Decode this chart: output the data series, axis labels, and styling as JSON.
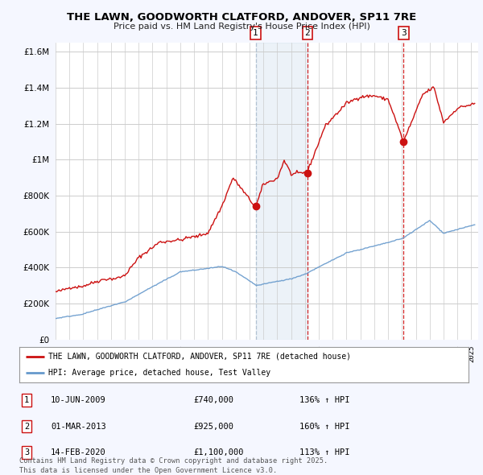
{
  "title": "THE LAWN, GOODWORTH CLATFORD, ANDOVER, SP11 7RE",
  "subtitle": "Price paid vs. HM Land Registry's House Price Index (HPI)",
  "background_color": "#f5f7ff",
  "plot_bg_color": "#ffffff",
  "grid_color": "#cccccc",
  "legend_entries": [
    "THE LAWN, GOODWORTH CLATFORD, ANDOVER, SP11 7RE (detached house)",
    "HPI: Average price, detached house, Test Valley"
  ],
  "legend_colors": [
    "#cc0000",
    "#6699cc"
  ],
  "sale_points": [
    {
      "label": "1",
      "date": "10-JUN-2009",
      "price": 740000,
      "pct": "136%",
      "year": 2009.44,
      "vline_style": "--",
      "vline_color": "#aabbcc"
    },
    {
      "label": "2",
      "date": "01-MAR-2013",
      "price": 925000,
      "pct": "160%",
      "year": 2013.17,
      "vline_style": "--",
      "vline_color": "#cc0000"
    },
    {
      "label": "3",
      "date": "14-FEB-2020",
      "price": 1100000,
      "pct": "113%",
      "year": 2020.12,
      "vline_style": "--",
      "vline_color": "#cc0000"
    }
  ],
  "shade_start": 2009.44,
  "shade_end": 2013.17,
  "footer_line1": "Contains HM Land Registry data © Crown copyright and database right 2025.",
  "footer_line2": "This data is licensed under the Open Government Licence v3.0.",
  "ylim": [
    0,
    1650000
  ],
  "yticks": [
    0,
    200000,
    400000,
    600000,
    800000,
    1000000,
    1200000,
    1400000,
    1600000
  ],
  "xlim_start": 1995.0,
  "xlim_end": 2025.5
}
